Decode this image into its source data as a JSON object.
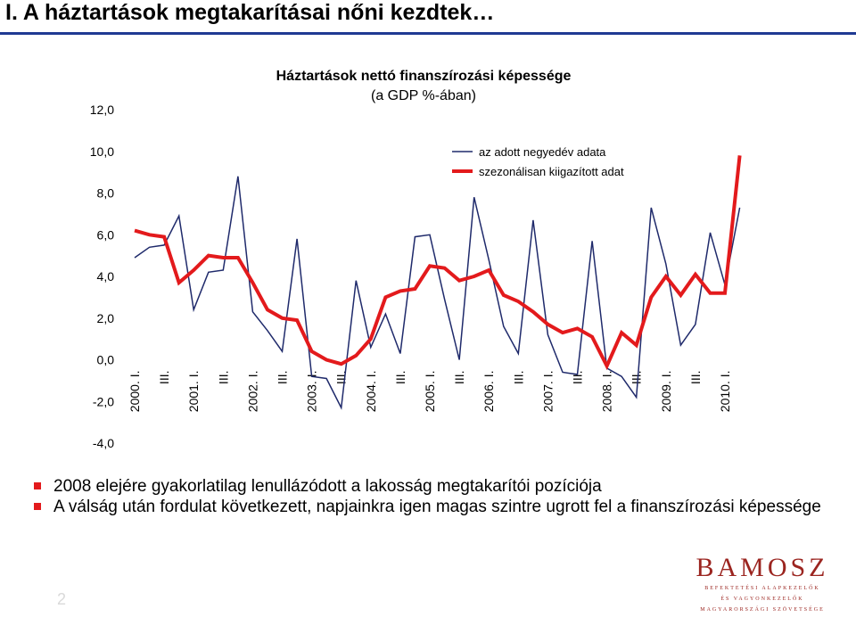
{
  "slide": {
    "title": "I. A háztartások megtakarításai nőni kezdtek…",
    "page_number": "2",
    "bullets": [
      "2008 elejére gyakorlatilag lenullázódott a lakosság megtakarítói pozíciója",
      "A válság után fordulat következett, napjainkra igen magas szintre ugrott fel a finanszírozási képessége"
    ],
    "logo": {
      "name": "BAMOSZ",
      "subtitle_lines": [
        "BEFEKTETÉSI ALAPKEZELŐK",
        "ÉS VAGYONKEZELŐK",
        "MAGYARORSZÁGI SZÖVETSÉGE"
      ]
    }
  },
  "colors": {
    "title_rule": "#1f3a93",
    "series_raw": "#1f2a6b",
    "series_sa": "#e31a1c",
    "bullet": "#e31a1c",
    "logo": "#9b2520"
  },
  "chart_data": {
    "type": "line",
    "title": "Háztartások nettó finanszírozási képessége",
    "subtitle": "(a GDP %-ában)",
    "ylim": [
      -4,
      12
    ],
    "y_ticks": [
      "-4,0",
      "-2,0",
      "0,0",
      "2,0",
      "4,0",
      "6,0",
      "8,0",
      "10,0",
      "12,0"
    ],
    "x_tick_labels": [
      "2000. I.",
      "III.",
      "2001. I.",
      "III.",
      "2002. I.",
      "III.",
      "2003. I.",
      "III.",
      "2004. I.",
      "III.",
      "2005. I.",
      "III.",
      "2006. I.",
      "III.",
      "2007. I.",
      "III.",
      "2008. I.",
      "III.",
      "2009. I.",
      "III.",
      "2010. I."
    ],
    "legend_position": "top-right",
    "grid": false,
    "series": [
      {
        "name": "az adott negyedév adata",
        "values": [
          4.9,
          5.4,
          5.5,
          6.9,
          2.4,
          4.2,
          4.3,
          8.8,
          2.3,
          1.4,
          0.4,
          5.8,
          -0.8,
          -0.9,
          -2.3,
          3.8,
          0.6,
          2.2,
          0.3,
          5.9,
          6.0,
          2.9,
          0.0,
          7.8,
          4.8,
          1.6,
          0.3,
          6.7,
          1.2,
          -0.6,
          -0.7,
          5.7,
          -0.4,
          -0.8,
          -1.8,
          7.3,
          4.6,
          0.7,
          1.7,
          6.1,
          3.6,
          7.3
        ]
      },
      {
        "name": "szezonálisan kiigazított adat",
        "values": [
          6.2,
          6.0,
          5.9,
          3.7,
          4.3,
          5.0,
          4.9,
          4.9,
          3.7,
          2.4,
          2.0,
          1.9,
          0.4,
          0.0,
          -0.2,
          0.2,
          1.0,
          3.0,
          3.3,
          3.4,
          4.5,
          4.4,
          3.8,
          4.0,
          4.3,
          3.1,
          2.8,
          2.3,
          1.7,
          1.3,
          1.5,
          1.1,
          -0.3,
          1.3,
          0.7,
          3.0,
          4.0,
          3.1,
          4.1,
          3.2,
          3.2,
          9.8
        ]
      }
    ]
  }
}
